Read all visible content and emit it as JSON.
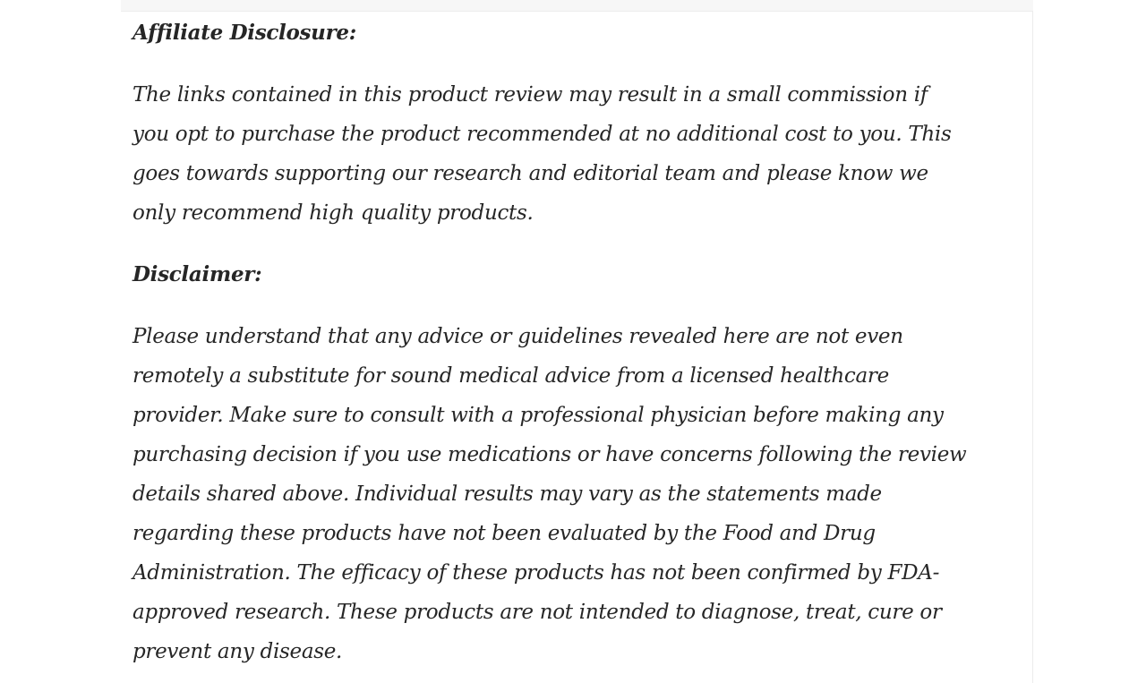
{
  "page": {
    "text_color": "#262626",
    "card_background": "#ffffff",
    "card_edge_color": "#ececec",
    "top_strip_color": "#f7f7f7"
  },
  "article": {
    "sections": [
      {
        "heading": "Affiliate Disclosure:",
        "lines": [
          "The links contained in this product review may result in a small commission if",
          "you opt to purchase the product recommended at no additional cost to you. This",
          "goes towards supporting our research and editorial team and please know we",
          "only recommend high quality products."
        ]
      },
      {
        "heading": "Disclaimer:",
        "lines": [
          "Please understand that any advice or guidelines revealed here are not even",
          "remotely a substitute for sound medical advice from a licensed healthcare",
          "provider. Make sure to consult with a professional physician before making any",
          "purchasing decision if you use medications or have concerns following the review",
          "details shared above. Individual results may vary as the statements made",
          "regarding these products have not been evaluated by the Food and Drug",
          "Administration. The efficacy of these products has not been confirmed by FDA-",
          "approved research. These products are not intended to diagnose, treat, cure or",
          "prevent any disease."
        ]
      }
    ]
  }
}
